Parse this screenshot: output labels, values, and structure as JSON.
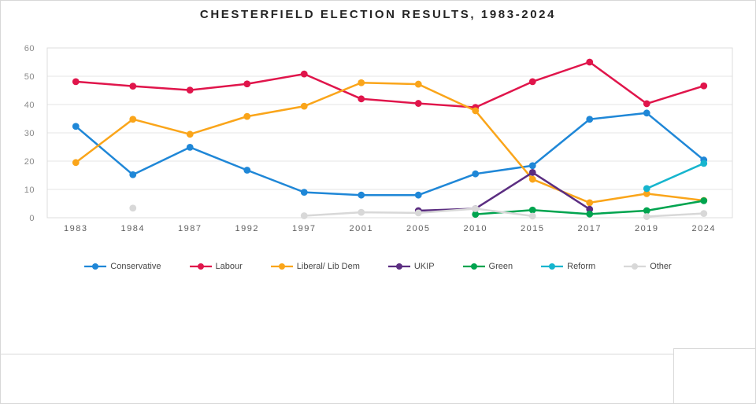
{
  "chart": {
    "title": "CHESTERFIELD ELECTION RESULTS, 1983-2024"
  },
  "chart_data": {
    "type": "line",
    "title": "CHESTERFIELD ELECTION RESULTS, 1983-2024",
    "categories": [
      "1983",
      "1984",
      "1987",
      "1992",
      "1997",
      "2001",
      "2005",
      "2010",
      "2015",
      "2017",
      "2019",
      "2024"
    ],
    "series": [
      {
        "name": "Conservative",
        "color": "#1F87D7",
        "values": [
          32.3,
          15.2,
          24.9,
          16.8,
          9,
          8,
          8,
          15.5,
          18.4,
          34.8,
          37,
          20.4
        ]
      },
      {
        "name": "Labour",
        "color": "#E0154B",
        "values": [
          48.1,
          46.5,
          45.1,
          47.3,
          50.8,
          42,
          40.4,
          39,
          48.1,
          55,
          40.3,
          46.6
        ]
      },
      {
        "name": "Liberal/ Lib Dem",
        "color": "#FAA51A",
        "values": [
          19.5,
          34.8,
          29.5,
          35.8,
          39.4,
          47.7,
          47.2,
          37.8,
          13.6,
          5.3,
          8.5,
          6.1
        ]
      },
      {
        "name": "UKIP",
        "color": "#5B2D81",
        "values": [
          null,
          null,
          null,
          null,
          null,
          null,
          2.5,
          3.2,
          16,
          3,
          null,
          null
        ]
      },
      {
        "name": "Green",
        "color": "#00A44F",
        "values": [
          null,
          null,
          null,
          null,
          null,
          null,
          null,
          1.2,
          2.7,
          1.3,
          2.5,
          6
        ]
      },
      {
        "name": "Reform",
        "color": "#16B5CE",
        "values": [
          null,
          null,
          null,
          null,
          null,
          null,
          null,
          null,
          null,
          null,
          10.3,
          19.2
        ]
      },
      {
        "name": "Other",
        "color": "#D8D8D8",
        "values": [
          null,
          3.4,
          null,
          null,
          0.7,
          1.9,
          1.7,
          3.2,
          0.6,
          null,
          0.4,
          1.5
        ]
      }
    ],
    "ylim": [
      0,
      60
    ],
    "yticks": [
      0,
      10,
      20,
      30,
      40,
      50,
      60
    ],
    "grid": true,
    "legend_position": "bottom"
  }
}
